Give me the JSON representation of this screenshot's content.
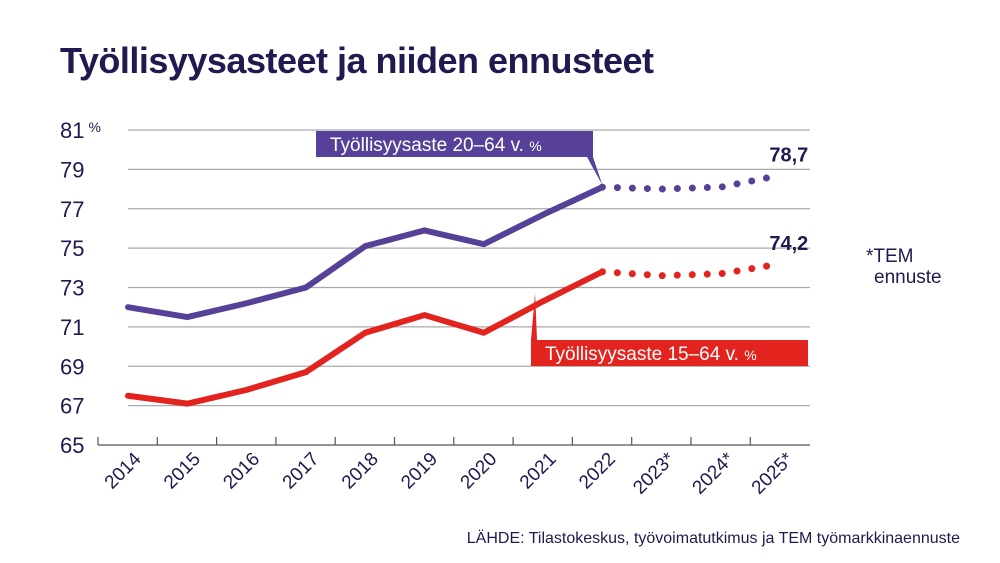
{
  "title": "Työllisyysasteet ja niiden ennusteet",
  "source": "LÄHDE: Tilastokeskus, työvoimatutkimus ja TEM työmarkkinaennuste",
  "note_line1": "*TEM",
  "note_line2": "ennuste",
  "chart_data": {
    "type": "line",
    "title": "Työllisyysasteet ja niiden ennusteet",
    "categories": [
      "2014",
      "2015",
      "2016",
      "2017",
      "2018",
      "2019",
      "2020",
      "2021",
      "2022",
      "2023*",
      "2024*",
      "2025*"
    ],
    "ylim": [
      65,
      81
    ],
    "yticks": [
      "65",
      "67",
      "69",
      "71",
      "73",
      "75",
      "77",
      "79",
      "81 %"
    ],
    "grid": true,
    "series": [
      {
        "name": "Työllisyysaste 20–64 v. %",
        "color": "#574198",
        "values": [
          72.0,
          71.5,
          72.2,
          73.0,
          75.1,
          75.9,
          75.2,
          76.7,
          78.1,
          78.0,
          78.1,
          78.7
        ],
        "forecast_from_index": 8,
        "end_label": "78,7"
      },
      {
        "name": "Työllisyysaste 15–64 v. %",
        "color": "#e3231e",
        "values": [
          67.5,
          67.1,
          67.8,
          68.7,
          70.7,
          71.6,
          70.7,
          72.3,
          73.8,
          73.6,
          73.7,
          74.2
        ],
        "forecast_from_index": 8,
        "end_label": "74,2"
      }
    ]
  }
}
